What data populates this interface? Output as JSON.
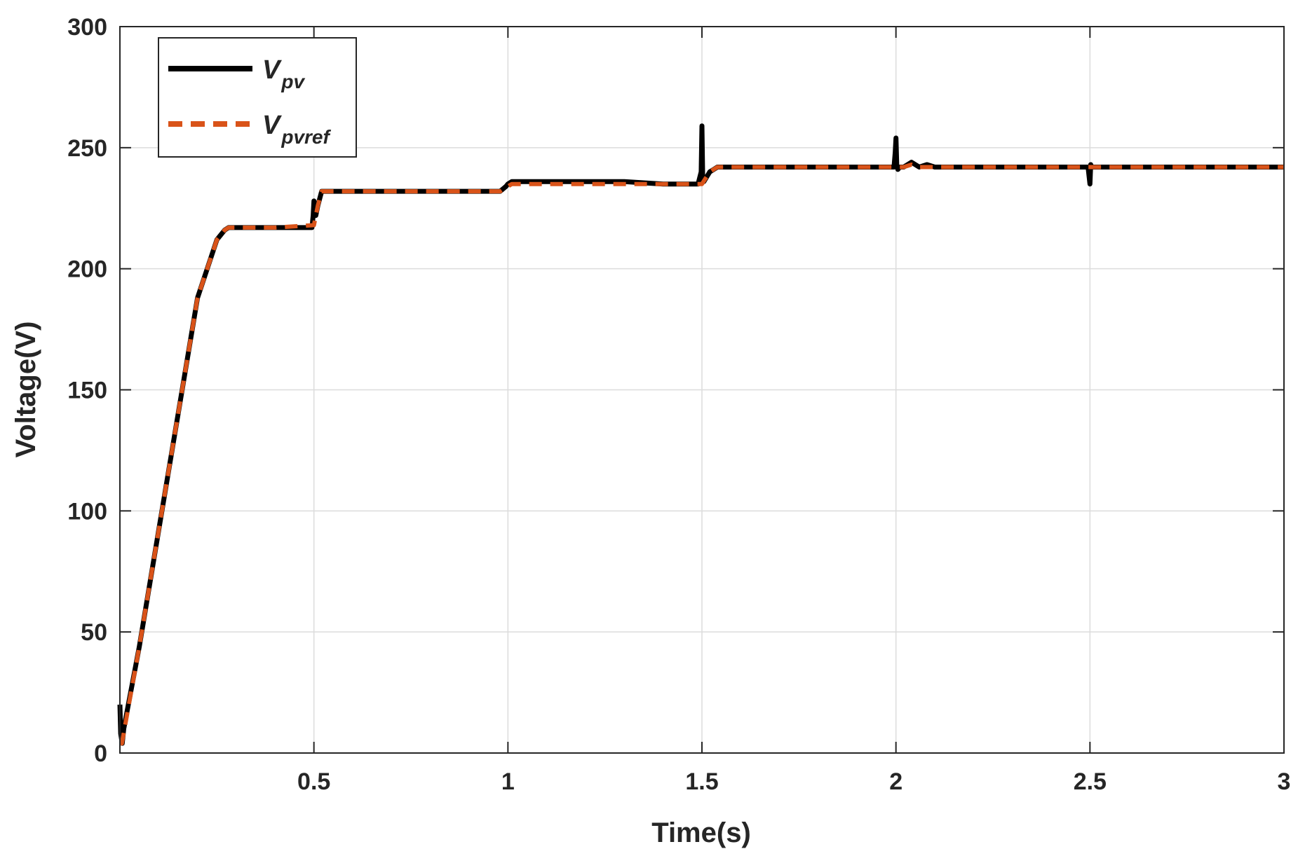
{
  "chart_data": {
    "type": "line",
    "xlabel": "Time(s)",
    "ylabel": "Voltage(V)",
    "xlim": [
      0,
      3
    ],
    "ylim": [
      0,
      300
    ],
    "xticks": [
      0.5,
      1,
      1.5,
      2,
      2.5,
      3
    ],
    "xtick_labels": [
      "0.5",
      "1",
      "1.5",
      "2",
      "2.5",
      "3"
    ],
    "yticks": [
      0,
      50,
      100,
      150,
      200,
      250,
      300
    ],
    "ytick_labels": [
      "0",
      "50",
      "100",
      "150",
      "200",
      "250",
      "300"
    ],
    "grid": true,
    "legend_position": "top-left",
    "series": [
      {
        "name": "V",
        "subscript": "pv",
        "color": "#000000",
        "style": "solid",
        "x": [
          0,
          0.002,
          0.006,
          0.01,
          0.05,
          0.1,
          0.15,
          0.2,
          0.25,
          0.27,
          0.28,
          0.3,
          0.4,
          0.495,
          0.498,
          0.5,
          0.502,
          0.505,
          0.51,
          0.52,
          0.55,
          0.6,
          0.7,
          0.8,
          0.9,
          0.98,
          0.995,
          1.0,
          1.01,
          1.1,
          1.2,
          1.3,
          1.4,
          1.49,
          1.498,
          1.5,
          1.502,
          1.505,
          1.52,
          1.54,
          1.6,
          1.7,
          1.8,
          1.9,
          1.995,
          1.998,
          2.0,
          2.002,
          2.005,
          2.01,
          2.02,
          2.04,
          2.06,
          2.08,
          2.1,
          2.2,
          2.3,
          2.4,
          2.495,
          2.5,
          2.502,
          2.505,
          2.6,
          2.7,
          2.8,
          2.9,
          3.0
        ],
        "y": [
          20,
          8,
          4,
          10,
          44,
          92,
          140,
          188,
          212,
          216,
          217,
          217,
          217,
          217,
          222,
          228,
          224,
          222,
          226,
          232,
          232,
          232,
          232,
          232,
          232,
          232,
          234,
          235,
          236,
          236,
          236,
          236,
          235,
          235,
          240,
          259,
          237,
          236,
          240,
          242,
          242,
          242,
          242,
          242,
          242,
          248,
          254,
          243,
          241,
          242,
          242,
          244,
          242,
          243,
          242,
          242,
          242,
          242,
          242,
          235,
          243,
          242,
          242,
          242,
          242,
          242,
          242
        ]
      },
      {
        "name": "V",
        "subscript": "pvref",
        "color": "#D95319",
        "style": "dashed",
        "x": [
          0,
          0.005,
          0.05,
          0.1,
          0.15,
          0.2,
          0.25,
          0.27,
          0.28,
          0.3,
          0.4,
          0.5,
          0.51,
          0.52,
          0.6,
          0.7,
          0.8,
          0.9,
          0.98,
          1.0,
          1.01,
          1.1,
          1.2,
          1.3,
          1.4,
          1.5,
          1.52,
          1.54,
          1.6,
          1.8,
          2.0,
          2.02,
          2.04,
          2.06,
          2.1,
          2.5,
          3.0
        ],
        "y": [
          4,
          4,
          44,
          92,
          140,
          188,
          212,
          216,
          217,
          217,
          217,
          218,
          226,
          232,
          232,
          232,
          232,
          232,
          232,
          234,
          235,
          235,
          235,
          235,
          235,
          235,
          240,
          242,
          242,
          242,
          242,
          242,
          243,
          242,
          242,
          242,
          242
        ]
      }
    ]
  }
}
